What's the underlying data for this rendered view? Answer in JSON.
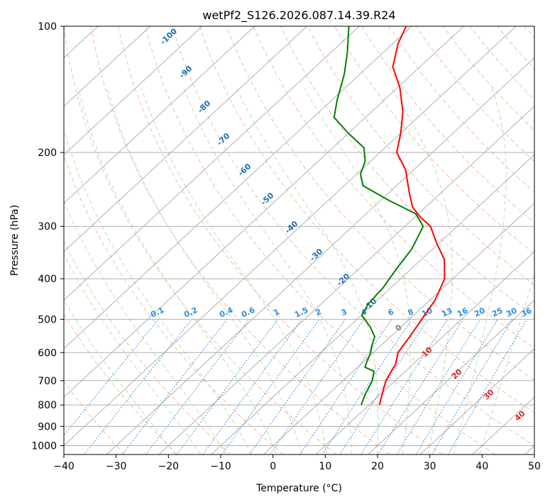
{
  "chart_data": {
    "type": "line",
    "title": "wetPf2_S126.2026.087.14.39.R24",
    "xlabel": "Temperature (°C)",
    "ylabel": "Pressure (hPa)",
    "xlim": [
      -40,
      50
    ],
    "ylim": [
      1050,
      100
    ],
    "x_ticks": [
      -40,
      -30,
      -20,
      -10,
      0,
      10,
      20,
      30,
      40,
      50
    ],
    "y_ticks": [
      100,
      200,
      300,
      400,
      500,
      600,
      700,
      800,
      900,
      1000
    ],
    "y_tick_labels": [
      "100",
      "200",
      "300",
      "400",
      "500",
      "600",
      "700",
      "800",
      "900",
      "1000"
    ],
    "skew_deg_per_decade": 86.5,
    "grid": true,
    "series": [
      {
        "name": "Temperature",
        "color": "#ff0000",
        "points": [
          {
            "p": 800,
            "t": 12.0
          },
          {
            "p": 760,
            "t": 10.5
          },
          {
            "p": 700,
            "t": 8.2
          },
          {
            "p": 665,
            "t": 7.3
          },
          {
            "p": 640,
            "t": 6.7
          },
          {
            "p": 600,
            "t": 4.7
          },
          {
            "p": 550,
            "t": 3.7
          },
          {
            "p": 500,
            "t": 2.4
          },
          {
            "p": 450,
            "t": 1.0
          },
          {
            "p": 400,
            "t": -1.6
          },
          {
            "p": 360,
            "t": -5.6
          },
          {
            "p": 330,
            "t": -10.3
          },
          {
            "p": 300,
            "t": -15.1
          },
          {
            "p": 285,
            "t": -19.0
          },
          {
            "p": 270,
            "t": -22.5
          },
          {
            "p": 250,
            "t": -26.0
          },
          {
            "p": 220,
            "t": -31.5
          },
          {
            "p": 200,
            "t": -36.8
          },
          {
            "p": 180,
            "t": -40.0
          },
          {
            "p": 160,
            "t": -44.0
          },
          {
            "p": 140,
            "t": -49.6
          },
          {
            "p": 125,
            "t": -55.2
          },
          {
            "p": 110,
            "t": -59.0
          },
          {
            "p": 100,
            "t": -61.0
          }
        ]
      },
      {
        "name": "Dewpoint",
        "color": "#008000",
        "points": [
          {
            "p": 800,
            "t": 8.5
          },
          {
            "p": 760,
            "t": 7.2
          },
          {
            "p": 700,
            "t": 5.6
          },
          {
            "p": 665,
            "t": 4.0
          },
          {
            "p": 650,
            "t": 1.4
          },
          {
            "p": 630,
            "t": 0.6
          },
          {
            "p": 600,
            "t": -0.5
          },
          {
            "p": 580,
            "t": -1.6
          },
          {
            "p": 550,
            "t": -3.0
          },
          {
            "p": 520,
            "t": -6.0
          },
          {
            "p": 490,
            "t": -9.8
          },
          {
            "p": 460,
            "t": -11.0
          },
          {
            "p": 420,
            "t": -11.5
          },
          {
            "p": 380,
            "t": -12.8
          },
          {
            "p": 340,
            "t": -14.0
          },
          {
            "p": 300,
            "t": -16.5
          },
          {
            "p": 280,
            "t": -20.5
          },
          {
            "p": 260,
            "t": -28.5
          },
          {
            "p": 240,
            "t": -36.4
          },
          {
            "p": 225,
            "t": -39.3
          },
          {
            "p": 210,
            "t": -41.0
          },
          {
            "p": 195,
            "t": -44.0
          },
          {
            "p": 180,
            "t": -50.0
          },
          {
            "p": 165,
            "t": -56.0
          },
          {
            "p": 150,
            "t": -59.0
          },
          {
            "p": 130,
            "t": -63.0
          },
          {
            "p": 115,
            "t": -67.0
          },
          {
            "p": 100,
            "t": -72.0
          }
        ]
      }
    ],
    "isotherm_labels": [
      {
        "text": "-100",
        "t": -100
      },
      {
        "text": "-90",
        "t": -90
      },
      {
        "text": "-80",
        "t": -80
      },
      {
        "text": "-70",
        "t": -70
      },
      {
        "text": "-60",
        "t": -60
      },
      {
        "text": "-50",
        "t": -50
      },
      {
        "text": "-40",
        "t": -40
      },
      {
        "text": "-30",
        "t": -30
      },
      {
        "text": "-20",
        "t": -20
      },
      {
        "text": "-10",
        "t": -10
      },
      {
        "text": "0",
        "t": 0
      },
      {
        "text": "10",
        "t": 10
      },
      {
        "text": "20",
        "t": 20
      },
      {
        "text": "30",
        "t": 30
      },
      {
        "text": "40",
        "t": 40
      }
    ],
    "mixing_ratio_labels": [
      "0.1",
      "0.2",
      "0.4",
      "0.6",
      "1",
      "1.5",
      "2",
      "3",
      "4",
      "6",
      "8",
      "10",
      "13",
      "16",
      "20",
      "25",
      "30",
      "36"
    ],
    "mixing_ratios": [
      0.1,
      0.2,
      0.4,
      0.6,
      1,
      1.5,
      2,
      3,
      4,
      6,
      8,
      10,
      13,
      16,
      20,
      25,
      30,
      36
    ],
    "colors": {
      "isotherm": "#b0b0b0",
      "dry_adiabat": "#f4a582",
      "moist_adiabat": "#a6d9a0",
      "mixing_ratio": "#1f78d1",
      "label_cold": "#1f6fb5",
      "label_zero": "#808080",
      "label_warm": "#d62728",
      "mr_label": "#2e8fe0"
    }
  }
}
